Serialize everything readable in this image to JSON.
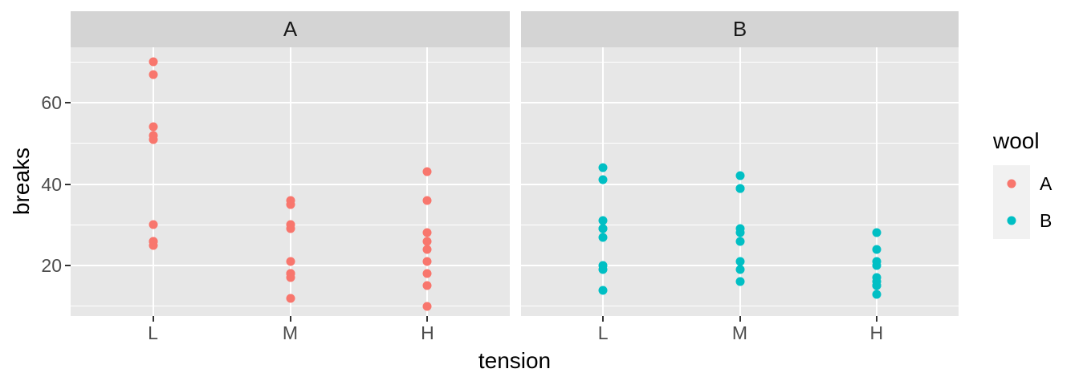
{
  "chart_data": {
    "type": "scatter",
    "title": "",
    "xlabel": "tension",
    "ylabel": "breaks",
    "facet_variable": "wool",
    "x_categories": [
      "L",
      "M",
      "H"
    ],
    "y_ticks": [
      20,
      40,
      60
    ],
    "y_minor_gridlines": [
      10,
      30,
      50,
      70
    ],
    "ylim": [
      7.6,
      73.6
    ],
    "grid": "on",
    "legend_position": "right",
    "facets": [
      {
        "label": "A",
        "color": "#F8766D",
        "points": {
          "L": [
            26,
            30,
            54,
            25,
            70,
            52,
            51,
            26,
            67
          ],
          "M": [
            18,
            21,
            29,
            17,
            12,
            18,
            35,
            30,
            36
          ],
          "H": [
            36,
            21,
            24,
            18,
            10,
            43,
            28,
            15,
            26
          ]
        }
      },
      {
        "label": "B",
        "color": "#00BFC4",
        "points": {
          "L": [
            27,
            14,
            29,
            19,
            29,
            31,
            41,
            20,
            44
          ],
          "M": [
            42,
            26,
            19,
            16,
            39,
            28,
            21,
            39,
            29
          ],
          "H": [
            20,
            21,
            24,
            17,
            13,
            15,
            15,
            16,
            28
          ]
        }
      }
    ],
    "legend": {
      "title": "wool",
      "entries": [
        {
          "label": "A",
          "color": "#F8766D"
        },
        {
          "label": "B",
          "color": "#00BFC4"
        }
      ]
    }
  },
  "colors": {
    "panel_bg": "#E7E7E7",
    "strip_bg": "#D4D4D4",
    "gridline": "#FFFFFF",
    "tick_mark": "#333333",
    "tick_label": "#4D4D4D",
    "axis_title": "#000000",
    "legend_key_bg": "#F1F1F1"
  }
}
